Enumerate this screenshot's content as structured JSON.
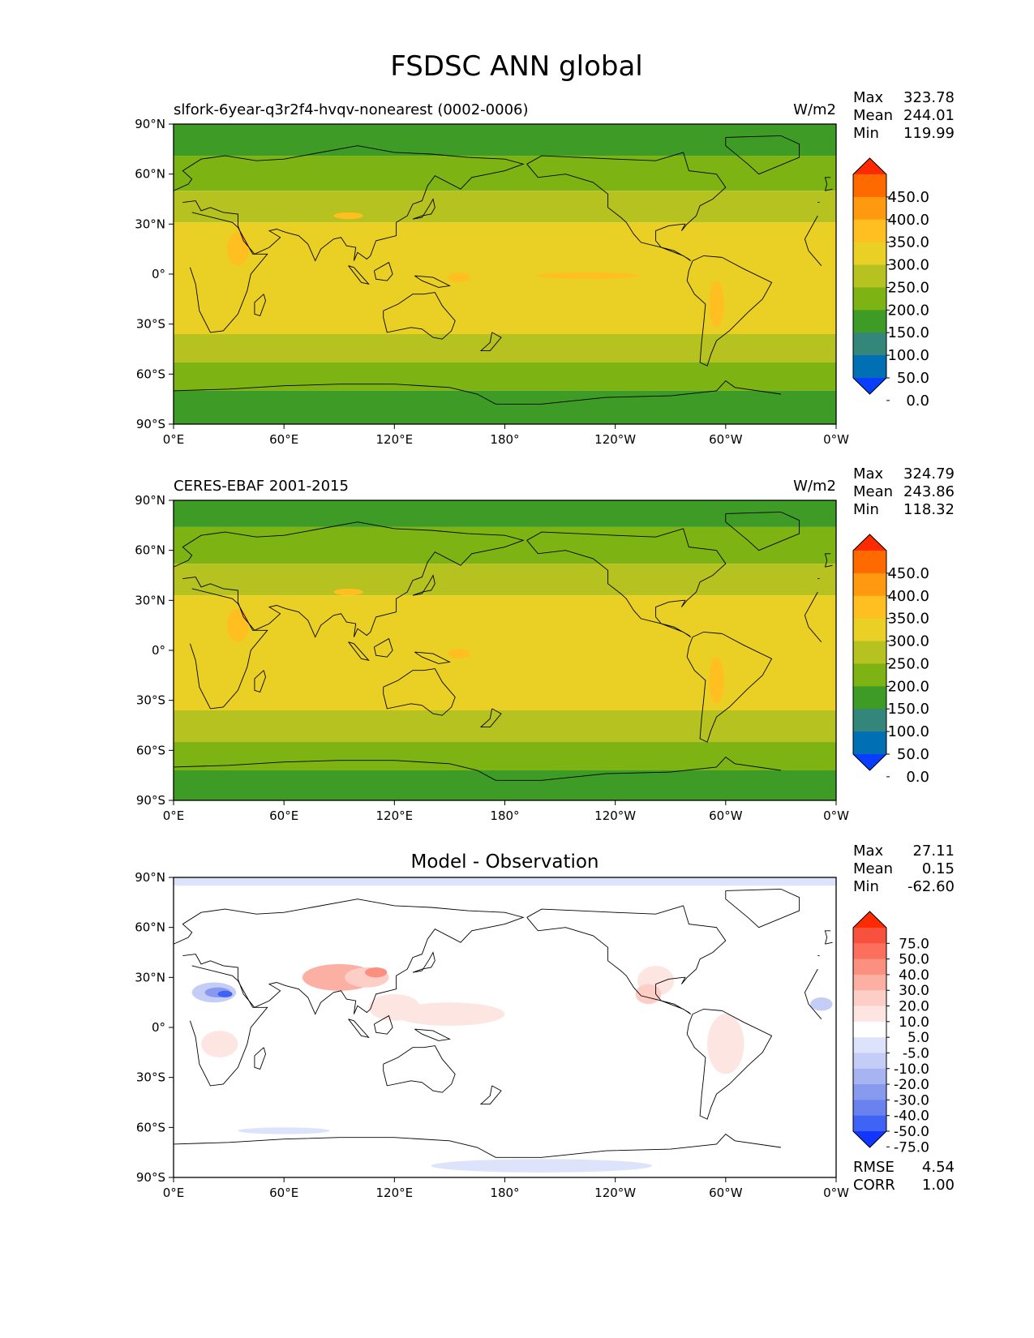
{
  "figure": {
    "title": "FSDSC ANN global"
  },
  "lat_ticks": [
    "90°N",
    "60°N",
    "30°N",
    "0°",
    "30°S",
    "60°S",
    "90°S"
  ],
  "lon_ticks": [
    "0°E",
    "60°E",
    "120°E",
    "180°",
    "120°W",
    "60°W",
    "0°W"
  ],
  "chart_data": [
    {
      "type": "heatmap",
      "title": "slfork-6year-q3r2f4-hvqv-nonearest (0002-0006)",
      "units": "W/m2",
      "stats": {
        "max_label": "Max",
        "max": "323.78",
        "mean_label": "Mean",
        "mean": "244.01",
        "min_label": "Min",
        "min": "119.99"
      },
      "colorbar": {
        "levels": [
          "450.0",
          "400.0",
          "350.0",
          "300.0",
          "250.0",
          "200.0",
          "150.0",
          "100.0",
          "50.0",
          "0.0"
        ],
        "colors": [
          "#ff2a00",
          "#ff6a00",
          "#ff9a10",
          "#ffbf20",
          "#ead025",
          "#b6c220",
          "#7db312",
          "#3e9b25",
          "#35867a",
          "#006fb3",
          "#0a3eff"
        ]
      },
      "field_bands": [
        {
          "lat_range": [
            71,
            90
          ],
          "color": "#3e9b25"
        },
        {
          "lat_range": [
            50,
            71
          ],
          "color": "#7db312"
        },
        {
          "lat_range": [
            31,
            50
          ],
          "color": "#b6c220"
        },
        {
          "lat_range": [
            -36,
            31
          ],
          "color": "#ead025"
        },
        {
          "lat_range": [
            -53,
            -36
          ],
          "color": "#b6c220"
        },
        {
          "lat_range": [
            -70,
            -53
          ],
          "color": "#7db312"
        },
        {
          "lat_range": [
            -90,
            -70
          ],
          "color": "#3e9b25"
        }
      ]
    },
    {
      "type": "heatmap",
      "title": "CERES-EBAF 2001-2015",
      "units": "W/m2",
      "stats": {
        "max_label": "Max",
        "max": "324.79",
        "mean_label": "Mean",
        "mean": "243.86",
        "min_label": "Min",
        "min": "118.32"
      },
      "colorbar": {
        "levels": [
          "450.0",
          "400.0",
          "350.0",
          "300.0",
          "250.0",
          "200.0",
          "150.0",
          "100.0",
          "50.0",
          "0.0"
        ],
        "colors": [
          "#ff2a00",
          "#ff6a00",
          "#ff9a10",
          "#ffbf20",
          "#ead025",
          "#b6c220",
          "#7db312",
          "#3e9b25",
          "#35867a",
          "#006fb3",
          "#0a3eff"
        ]
      },
      "field_bands": [
        {
          "lat_range": [
            74,
            90
          ],
          "color": "#3e9b25"
        },
        {
          "lat_range": [
            52,
            74
          ],
          "color": "#7db312"
        },
        {
          "lat_range": [
            33,
            52
          ],
          "color": "#b6c220"
        },
        {
          "lat_range": [
            -36,
            33
          ],
          "color": "#ead025"
        },
        {
          "lat_range": [
            -55,
            -36
          ],
          "color": "#b6c220"
        },
        {
          "lat_range": [
            -72,
            -55
          ],
          "color": "#7db312"
        },
        {
          "lat_range": [
            -90,
            -72
          ],
          "color": "#3e9b25"
        }
      ]
    },
    {
      "type": "heatmap",
      "title": "Model - Observation",
      "units": "",
      "stats": {
        "max_label": "Max",
        "max": "27.11",
        "mean_label": "Mean",
        "mean": "0.15",
        "min_label": "Min",
        "min": "-62.60",
        "rmse_label": "RMSE",
        "rmse": "4.54",
        "corr_label": "CORR",
        "corr": "1.00"
      },
      "colorbar": {
        "levels": [
          "75.0",
          "50.0",
          "40.0",
          "30.0",
          "20.0",
          "10.0",
          "5.0",
          "-5.0",
          "-10.0",
          "-20.0",
          "-30.0",
          "-40.0",
          "-50.0",
          "-75.0"
        ],
        "colors": [
          "#ff2a00",
          "#f8523e",
          "#fb6f5c",
          "#fb8f80",
          "#fcb0a4",
          "#fdcec6",
          "#fde6e2",
          "#ffffff",
          "#dde3fb",
          "#c3cdf6",
          "#a6b4f2",
          "#879aee",
          "#6a82f0",
          "#3f63f5",
          "#1236ff"
        ]
      },
      "field_bands": [
        {
          "lat_range": [
            85,
            90
          ],
          "color": "#dde3fb"
        },
        {
          "lat_range": [
            -90,
            85
          ],
          "color": "#ffffff"
        }
      ]
    }
  ]
}
